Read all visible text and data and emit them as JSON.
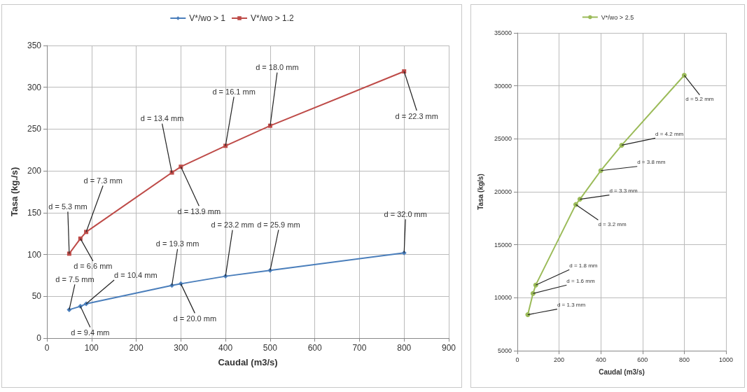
{
  "chart_data": [
    {
      "type": "line",
      "xlabel": "Caudal (m3/s)",
      "ylabel": "Tasa (kg./s)",
      "x": [
        50,
        75,
        88,
        280,
        300,
        400,
        500,
        800
      ],
      "xlim": [
        0,
        900
      ],
      "xticks": [
        0,
        100,
        200,
        300,
        400,
        500,
        600,
        700,
        800,
        900
      ],
      "ylim": [
        0,
        350
      ],
      "yticks": [
        0,
        50,
        100,
        150,
        200,
        250,
        300,
        350
      ],
      "grid": true,
      "legend": "top",
      "series": [
        {
          "name": "V*/wo > 1",
          "color": "#4a7ebb",
          "marker": "diamond",
          "values": [
            34,
            38,
            41,
            63,
            65,
            74,
            81,
            102
          ]
        },
        {
          "name": "V*/wo > 1.2",
          "color": "#be4b48",
          "marker": "square",
          "values": [
            101,
            119,
            127,
            198,
            205,
            230,
            254,
            319
          ]
        }
      ],
      "annotations": [
        {
          "text": "d = 7.5 mm",
          "x": 50,
          "y": 34
        },
        {
          "text": "d = 9.4 mm",
          "x": 75,
          "y": 38
        },
        {
          "text": "d = 10.4 mm",
          "x": 88,
          "y": 41
        },
        {
          "text": "d = 19.3 mm",
          "x": 280,
          "y": 63
        },
        {
          "text": "d = 20.0 mm",
          "x": 300,
          "y": 65
        },
        {
          "text": "d = 23.2 mm",
          "x": 400,
          "y": 74
        },
        {
          "text": "d = 25.9 mm",
          "x": 500,
          "y": 81
        },
        {
          "text": "d = 32.0 mm",
          "x": 800,
          "y": 102
        },
        {
          "text": "d = 5.3 mm",
          "x": 50,
          "y": 101
        },
        {
          "text": "d = 6.6 mm",
          "x": 75,
          "y": 119
        },
        {
          "text": "d = 7.3 mm",
          "x": 88,
          "y": 127
        },
        {
          "text": "d = 13.4 mm",
          "x": 280,
          "y": 198
        },
        {
          "text": "d = 13.9 mm",
          "x": 300,
          "y": 205
        },
        {
          "text": "d = 16.1 mm",
          "x": 400,
          "y": 230
        },
        {
          "text": "d = 18.0 mm",
          "x": 500,
          "y": 254
        },
        {
          "text": "d = 22.3 mm",
          "x": 800,
          "y": 319
        }
      ]
    },
    {
      "type": "line",
      "xlabel": "Caudal (m3/s)",
      "ylabel": "Tasa (kg/s)",
      "x": [
        50,
        75,
        88,
        280,
        300,
        400,
        500,
        800
      ],
      "xlim": [
        0,
        1000
      ],
      "xticks": [
        0,
        200,
        400,
        600,
        800,
        1000
      ],
      "ylim": [
        5000,
        35000
      ],
      "yticks": [
        5000,
        10000,
        15000,
        20000,
        25000,
        30000,
        35000
      ],
      "grid": true,
      "legend": "top",
      "series": [
        {
          "name": "V*/wo > 2.5",
          "color": "#9bbb59",
          "marker": "circle",
          "values": [
            8400,
            10400,
            11200,
            18800,
            19300,
            22000,
            24400,
            31000
          ]
        }
      ],
      "annotations": [
        {
          "text": "d = 1.3 mm",
          "x": 50,
          "y": 8400
        },
        {
          "text": "d = 1.6 mm",
          "x": 75,
          "y": 10400
        },
        {
          "text": "d = 1.8 mm",
          "x": 88,
          "y": 11200
        },
        {
          "text": "d = 3.2 mm",
          "x": 280,
          "y": 18800
        },
        {
          "text": "d = 3.3 mm",
          "x": 300,
          "y": 19300
        },
        {
          "text": "d = 3.8 mm",
          "x": 400,
          "y": 22000
        },
        {
          "text": "d = 4.2 mm",
          "x": 500,
          "y": 24400
        },
        {
          "text": "d = 5.2 mm",
          "x": 800,
          "y": 31000
        }
      ]
    }
  ]
}
